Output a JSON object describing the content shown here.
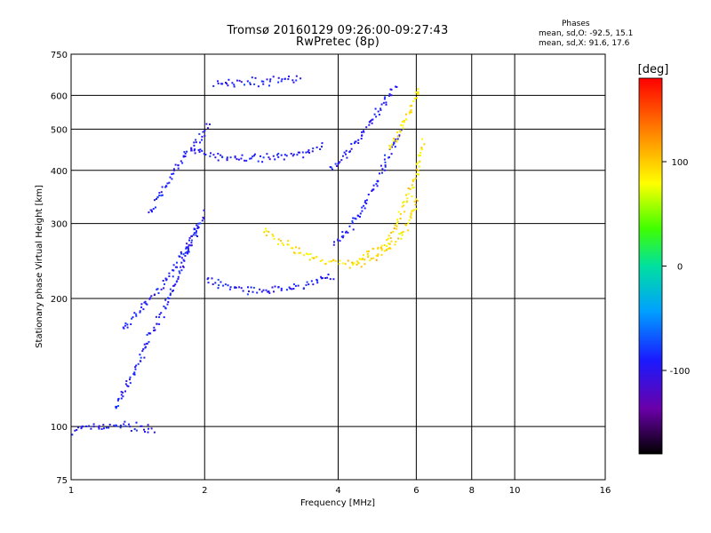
{
  "header": {
    "title_line1": "Tromsø 20160129 09:26:00-09:27:43",
    "title_line2": "RwPretec (8p)"
  },
  "stats": {
    "heading": "Phases",
    "line_o": "mean, sd,O: -92.5, 15.1",
    "line_x": "mean, sd,X:  91.6, 17.6"
  },
  "chart_data": {
    "type": "scatter",
    "xlabel": "Frequency [MHz]",
    "ylabel": "Stationary phase Virtual Height [km]",
    "xscale": "log",
    "yscale": "log",
    "xlim": [
      1,
      16
    ],
    "ylim": [
      75,
      750
    ],
    "x_ticks": [
      1,
      2,
      4,
      6,
      8,
      10,
      16
    ],
    "y_ticks": [
      75,
      100,
      200,
      300,
      400,
      500,
      600,
      750
    ],
    "grid": true,
    "colorbar": {
      "label": "[deg]",
      "range": [
        -180,
        180
      ],
      "ticks": [
        -100,
        0,
        100
      ]
    },
    "series": [
      {
        "mode": "O",
        "phase_mean": -92.5,
        "phase_sd": 15.1,
        "traces": [
          {
            "x": [
              1.0,
              1.05,
              1.1,
              1.2,
              1.3,
              1.45,
              1.55
            ],
            "y": [
              98,
              100,
              101,
              100,
              101,
              100,
              98
            ]
          },
          {
            "x": [
              1.25,
              1.35,
              1.45,
              1.55,
              1.65,
              1.75,
              1.85,
              1.95
            ],
            "y": [
              110,
              130,
              150,
              175,
              200,
              230,
              270,
              300
            ]
          },
          {
            "x": [
              1.3,
              1.4,
              1.5,
              1.6,
              1.7,
              1.8,
              1.9,
              2.0
            ],
            "y": [
              170,
              185,
              200,
              215,
              235,
              260,
              290,
              320
            ]
          },
          {
            "x": [
              1.5,
              1.6,
              1.7,
              1.8,
              1.9,
              2.0,
              2.05
            ],
            "y": [
              320,
              360,
              400,
              440,
              470,
              500,
              520
            ]
          },
          {
            "x": [
              2.0,
              2.2,
              2.5,
              2.8,
              3.0,
              3.3,
              3.6,
              3.9
            ],
            "y": [
              225,
              215,
              210,
              210,
              212,
              215,
              220,
              228
            ]
          },
          {
            "x": [
              1.85,
              2.0,
              2.2,
              2.5,
              2.8,
              3.1,
              3.4,
              3.7
            ],
            "y": [
              450,
              440,
              432,
              430,
              432,
              438,
              445,
              455
            ]
          },
          {
            "x": [
              2.1,
              2.5,
              2.8,
              3.1,
              3.3
            ],
            "y": [
              640,
              645,
              650,
              655,
              660
            ]
          },
          {
            "x": [
              3.8,
              4.1,
              4.4,
              4.7,
              5.0,
              5.2,
              5.4
            ],
            "y": [
              400,
              430,
              470,
              520,
              570,
              610,
              640
            ]
          },
          {
            "x": [
              3.9,
              4.3,
              4.6,
              4.9,
              5.1,
              5.3,
              5.5
            ],
            "y": [
              270,
              300,
              340,
              380,
              420,
              460,
              500
            ]
          }
        ]
      },
      {
        "mode": "X",
        "phase_mean": 91.6,
        "phase_sd": 17.6,
        "traces": [
          {
            "x": [
              2.7,
              3.0,
              3.3,
              3.6,
              3.9,
              4.2,
              4.5,
              4.8,
              5.1,
              5.5,
              5.8,
              6.0
            ],
            "y": [
              290,
              270,
              255,
              248,
              245,
              243,
              245,
              250,
              260,
              280,
              310,
              350
            ]
          },
          {
            "x": [
              4.3,
              4.7,
              5.1,
              5.4,
              5.7,
              6.0,
              6.2
            ],
            "y": [
              245,
              255,
              270,
              300,
              340,
              400,
              470
            ]
          },
          {
            "x": [
              5.2,
              5.6,
              5.9,
              6.1
            ],
            "y": [
              450,
              520,
              580,
              630
            ]
          }
        ]
      }
    ]
  }
}
